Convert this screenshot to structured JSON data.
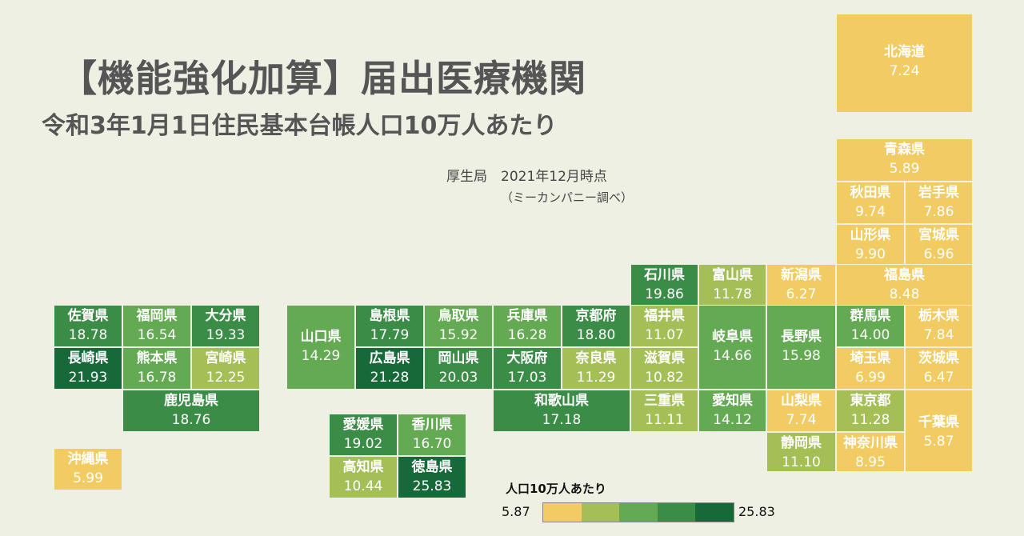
{
  "title": "【機能強化加算】届出医療機関",
  "subtitle": "令和3年1月1日住民基本台帳人口10万人あたり",
  "source": "厚生局　2021年12月時点",
  "note": "（ミーカンパニー調べ）",
  "colors": [
    "#f2cc62",
    "#a4bf56",
    "#63aa52",
    "#3b8c46",
    "#17693a"
  ],
  "chart_data": {
    "type": "heatmap",
    "legend": {
      "title": "人口10万人あたり",
      "min_label": "5.87",
      "max_label": "25.83",
      "min": 5.87,
      "max": 25.83
    },
    "prefectures": [
      {
        "name": "北海道",
        "value": "7.24"
      },
      {
        "name": "青森県",
        "value": "5.89"
      },
      {
        "name": "秋田県",
        "value": "9.74"
      },
      {
        "name": "岩手県",
        "value": "7.86"
      },
      {
        "name": "山形県",
        "value": "9.90"
      },
      {
        "name": "宮城県",
        "value": "6.96"
      },
      {
        "name": "石川県",
        "value": "19.86"
      },
      {
        "name": "富山県",
        "value": "11.78"
      },
      {
        "name": "新潟県",
        "value": "6.27"
      },
      {
        "name": "福島県",
        "value": "8.48"
      },
      {
        "name": "佐賀県",
        "value": "18.78"
      },
      {
        "name": "福岡県",
        "value": "16.54"
      },
      {
        "name": "大分県",
        "value": "19.33"
      },
      {
        "name": "山口県",
        "value": "14.29"
      },
      {
        "name": "島根県",
        "value": "17.79"
      },
      {
        "name": "鳥取県",
        "value": "15.92"
      },
      {
        "name": "兵庫県",
        "value": "16.28"
      },
      {
        "name": "京都府",
        "value": "18.80"
      },
      {
        "name": "福井県",
        "value": "11.07"
      },
      {
        "name": "岐阜県",
        "value": "14.66"
      },
      {
        "name": "長野県",
        "value": "15.98"
      },
      {
        "name": "群馬県",
        "value": "14.00"
      },
      {
        "name": "栃木県",
        "value": "7.84"
      },
      {
        "name": "長崎県",
        "value": "21.93"
      },
      {
        "name": "熊本県",
        "value": "16.78"
      },
      {
        "name": "宮崎県",
        "value": "12.25"
      },
      {
        "name": "広島県",
        "value": "21.28"
      },
      {
        "name": "岡山県",
        "value": "20.03"
      },
      {
        "name": "大阪府",
        "value": "17.03"
      },
      {
        "name": "奈良県",
        "value": "11.29"
      },
      {
        "name": "滋賀県",
        "value": "10.82"
      },
      {
        "name": "埼玉県",
        "value": "6.99"
      },
      {
        "name": "茨城県",
        "value": "6.47"
      },
      {
        "name": "鹿児島県",
        "value": "18.76"
      },
      {
        "name": "和歌山県",
        "value": "17.18"
      },
      {
        "name": "三重県",
        "value": "11.11"
      },
      {
        "name": "愛知県",
        "value": "14.12"
      },
      {
        "name": "山梨県",
        "value": "7.74"
      },
      {
        "name": "東京都",
        "value": "11.28"
      },
      {
        "name": "千葉県",
        "value": "5.87"
      },
      {
        "name": "愛媛県",
        "value": "19.02"
      },
      {
        "name": "香川県",
        "value": "16.70"
      },
      {
        "name": "静岡県",
        "value": "11.10"
      },
      {
        "name": "神奈川県",
        "value": "8.95"
      },
      {
        "name": "高知県",
        "value": "10.44"
      },
      {
        "name": "徳島県",
        "value": "25.83"
      },
      {
        "name": "沖縄県",
        "value": "5.99"
      }
    ]
  }
}
